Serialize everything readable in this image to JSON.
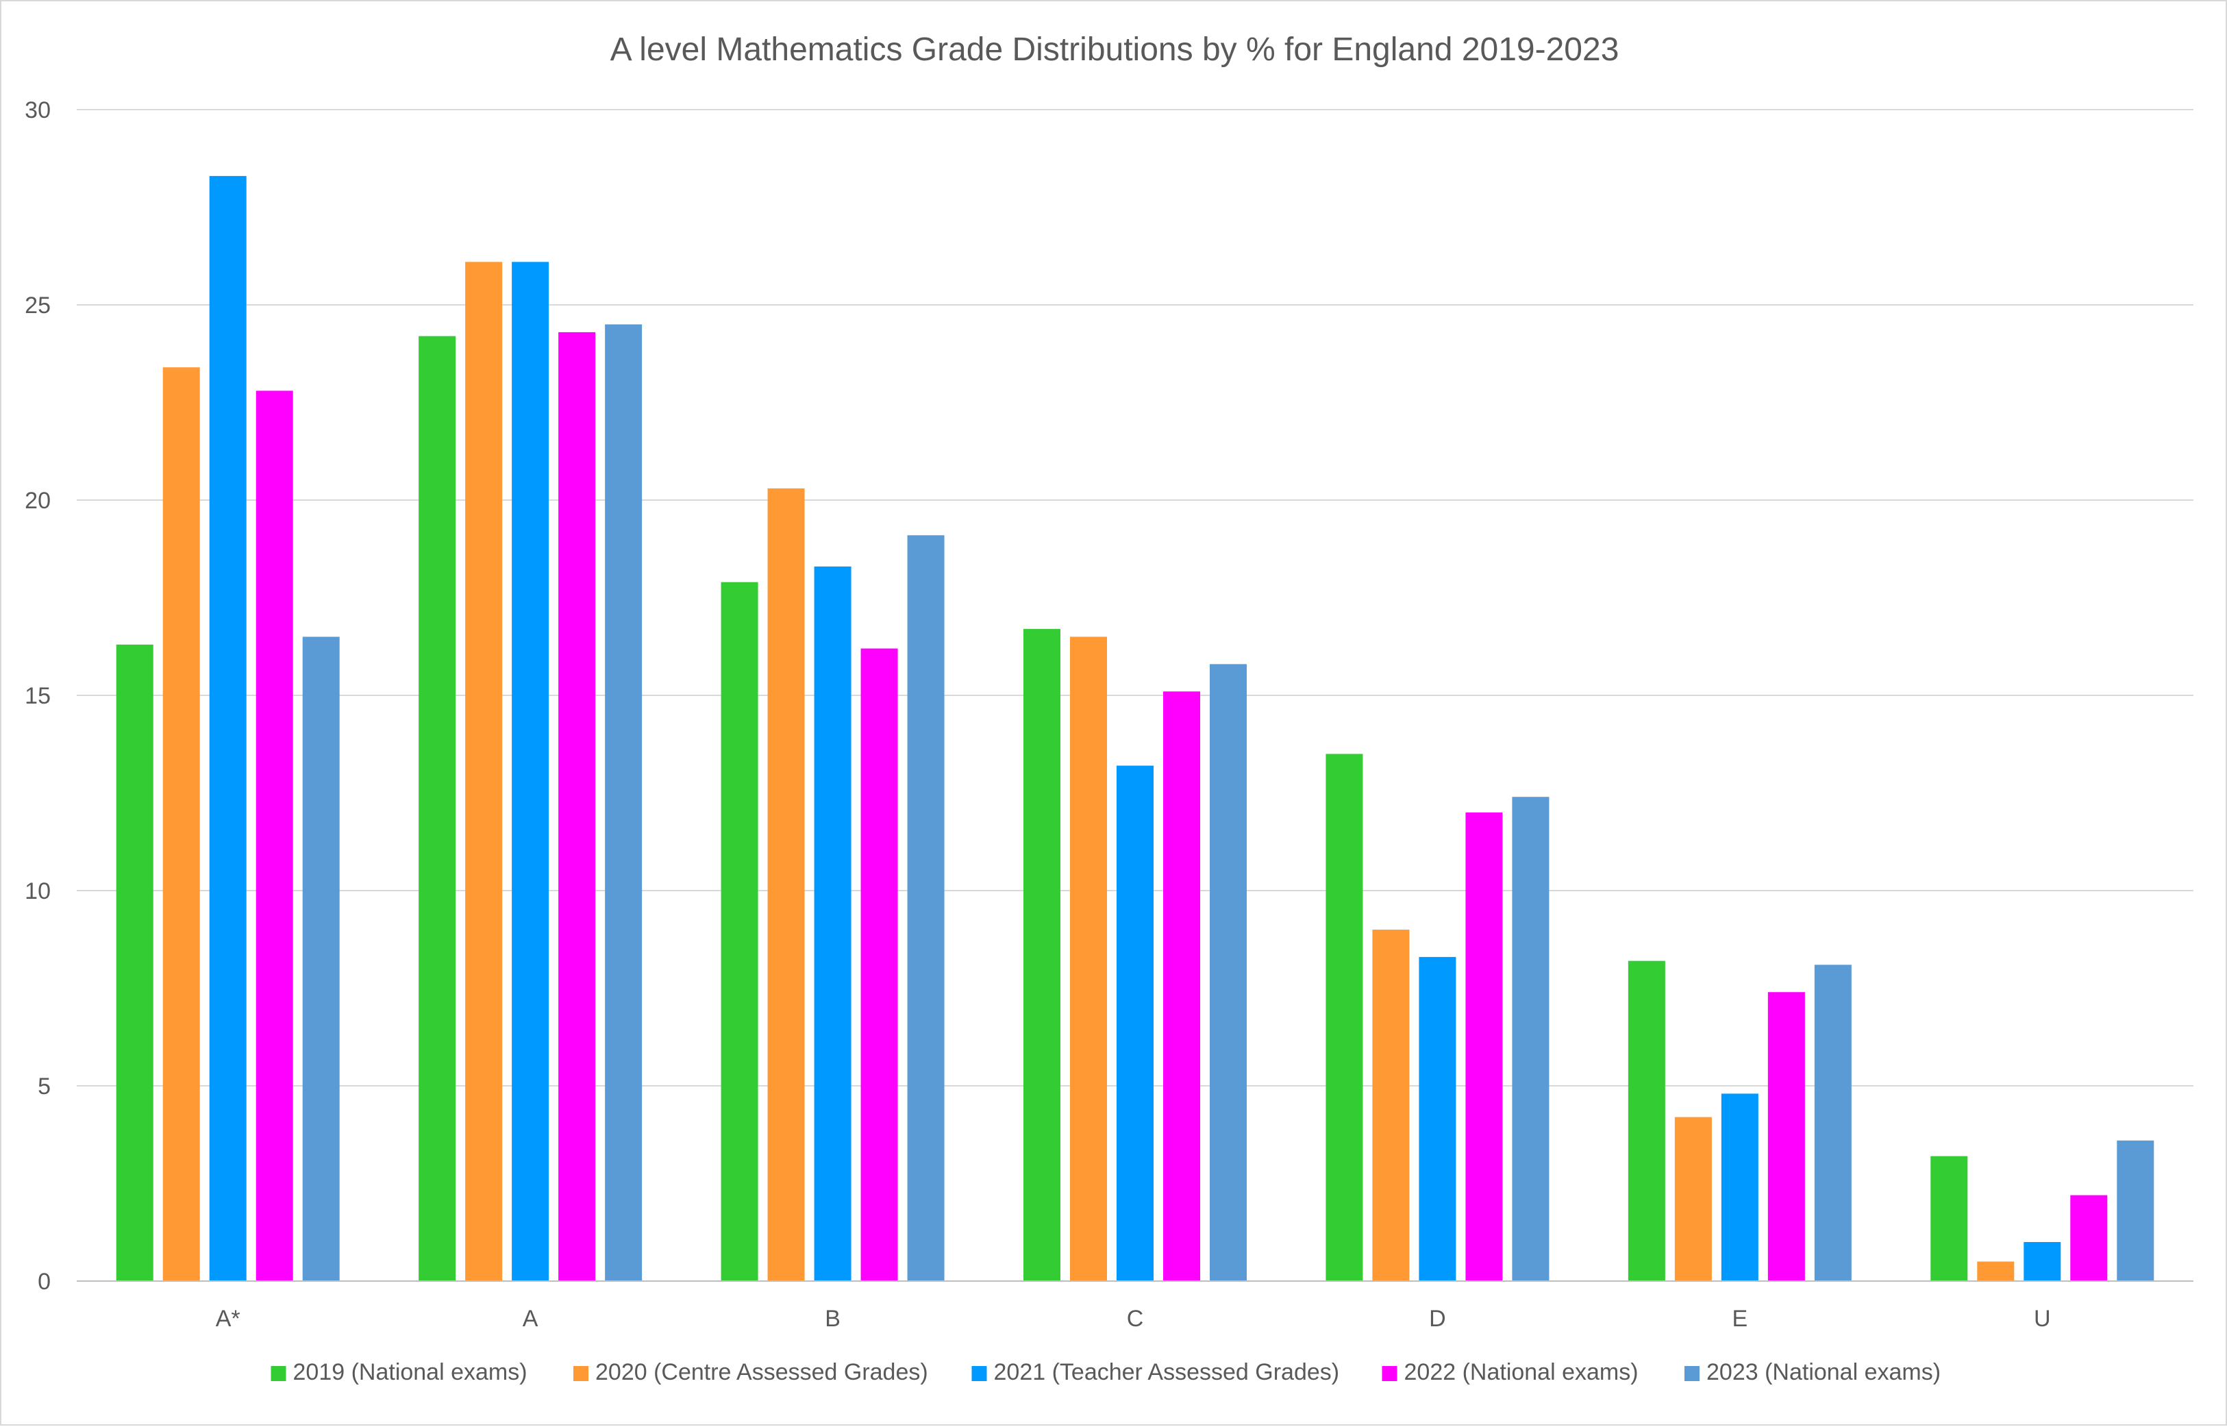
{
  "chart_data": {
    "type": "bar",
    "title": "A level Mathematics Grade Distributions by % for England 2019-2023",
    "xlabel": "",
    "ylabel": "",
    "ylim": [
      0,
      30
    ],
    "yticks": [
      0,
      5,
      10,
      15,
      20,
      25,
      30
    ],
    "grid": true,
    "legend_position": "bottom",
    "categories": [
      "A*",
      "A",
      "B",
      "C",
      "D",
      "E",
      "U"
    ],
    "series": [
      {
        "name": "2019 (National exams)",
        "color": "#33cc33",
        "values": [
          16.3,
          24.2,
          17.9,
          16.7,
          13.5,
          8.2,
          3.2
        ]
      },
      {
        "name": "2020 (Centre Assessed Grades)",
        "color": "#ff9933",
        "values": [
          23.4,
          26.1,
          20.3,
          16.5,
          9.0,
          4.2,
          0.5
        ]
      },
      {
        "name": "2021 (Teacher Assessed Grades)",
        "color": "#0099ff",
        "values": [
          28.3,
          26.1,
          18.3,
          13.2,
          8.3,
          4.8,
          1.0
        ]
      },
      {
        "name": "2022 (National exams)",
        "color": "#ff00ff",
        "values": [
          22.8,
          24.3,
          16.2,
          15.1,
          12.0,
          7.4,
          2.2
        ]
      },
      {
        "name": "2023 (National exams)",
        "color": "#5b9bd5",
        "values": [
          16.5,
          24.5,
          19.1,
          15.8,
          12.4,
          8.1,
          3.6
        ]
      }
    ]
  }
}
